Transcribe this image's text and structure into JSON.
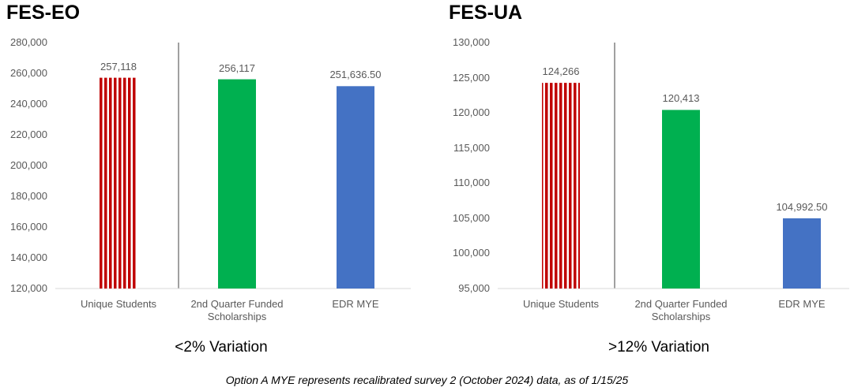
{
  "chart_data": [
    {
      "type": "bar",
      "title": "FES-EO",
      "categories": [
        "Unique Students",
        "2nd Quarter Funded Scholarships",
        "EDR MYE"
      ],
      "values": [
        257118,
        256117,
        251636.5
      ],
      "value_labels": [
        "257,118",
        "256,117",
        "251,636.50"
      ],
      "colors": [
        "#c00000",
        "#00b050",
        "#4472c4"
      ],
      "striped": [
        true,
        false,
        false
      ],
      "ylim": [
        120000,
        280000
      ],
      "yticks": [
        {
          "value": 120000,
          "label": "120,000"
        },
        {
          "value": 140000,
          "label": "140,000"
        },
        {
          "value": 160000,
          "label": "160,000"
        },
        {
          "value": 180000,
          "label": "180,000"
        },
        {
          "value": 200000,
          "label": "200,000"
        },
        {
          "value": 220000,
          "label": "220,000"
        },
        {
          "value": 240000,
          "label": "240,000"
        },
        {
          "value": 260000,
          "label": "260,000"
        },
        {
          "value": 280000,
          "label": "280,000"
        }
      ],
      "grid": false,
      "note": "<2% Variation"
    },
    {
      "type": "bar",
      "title": "FES-UA",
      "categories": [
        "Unique Students",
        "2nd Quarter Funded Scholarships",
        "EDR MYE"
      ],
      "values": [
        124266,
        120413,
        104992.5
      ],
      "value_labels": [
        "124,266",
        "120,413",
        "104,992.50"
      ],
      "colors": [
        "#c00000",
        "#00b050",
        "#4472c4"
      ],
      "striped": [
        true,
        false,
        false
      ],
      "ylim": [
        95000,
        130000
      ],
      "yticks": [
        {
          "value": 95000,
          "label": "95,000"
        },
        {
          "value": 100000,
          "label": "100,000"
        },
        {
          "value": 105000,
          "label": "105,000"
        },
        {
          "value": 110000,
          "label": "110,000"
        },
        {
          "value": 115000,
          "label": "115,000"
        },
        {
          "value": 120000,
          "label": "120,000"
        },
        {
          "value": 125000,
          "label": "125,000"
        },
        {
          "value": 130000,
          "label": "130,000"
        }
      ],
      "grid": false,
      "note": ">12% Variation"
    }
  ],
  "footnote": "Option A MYE represents recalibrated survey 2 (October 2024) data, as of 1/15/25"
}
